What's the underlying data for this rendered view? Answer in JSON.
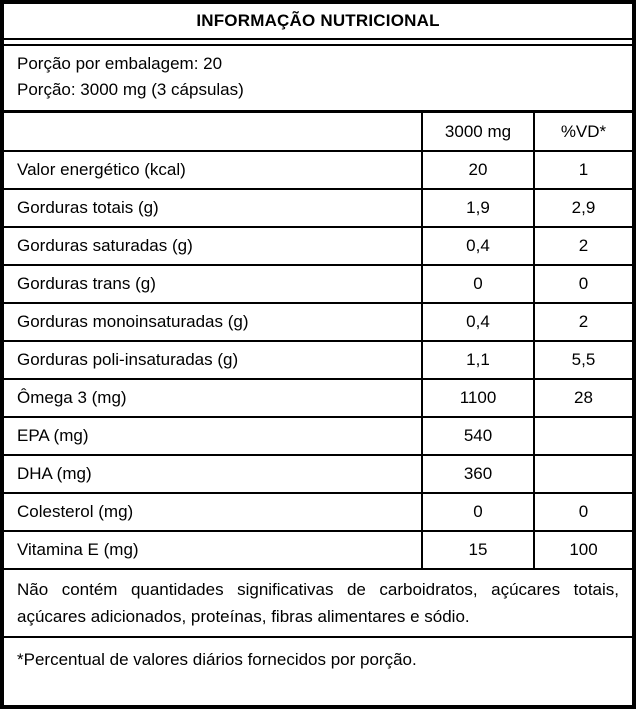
{
  "title": "INFORMAÇÃO NUTRICIONAL",
  "serving": {
    "servings_per_package": "Porção por embalagem: 20",
    "serving_size": "Porção: 3000 mg (3 cápsulas)"
  },
  "table": {
    "columns": {
      "amount": "3000 mg",
      "vd": "%VD*"
    },
    "rows": [
      {
        "label": "Valor energético (kcal)",
        "amount": "20",
        "vd": "1"
      },
      {
        "label": "Gorduras totais (g)",
        "amount": "1,9",
        "vd": "2,9"
      },
      {
        "label": "Gorduras saturadas (g)",
        "amount": "0,4",
        "vd": "2"
      },
      {
        "label": "Gorduras trans (g)",
        "amount": "0",
        "vd": "0"
      },
      {
        "label": "Gorduras monoinsaturadas (g)",
        "amount": "0,4",
        "vd": "2"
      },
      {
        "label": "Gorduras poli-insaturadas (g)",
        "amount": "1,1",
        "vd": "5,5"
      },
      {
        "label": "Ômega 3 (mg)",
        "amount": "1100",
        "vd": "28"
      },
      {
        "label": "EPA (mg)",
        "amount": "540",
        "vd": ""
      },
      {
        "label": "DHA (mg)",
        "amount": "360",
        "vd": ""
      },
      {
        "label": "Colesterol (mg)",
        "amount": "0",
        "vd": "0"
      },
      {
        "label": "Vitamina E (mg)",
        "amount": "15",
        "vd": "100"
      }
    ]
  },
  "notes": {
    "no_significant_amounts": "Não contém quantidades significativas de carboidratos, açúcares totais, açúcares adicionados, proteínas, fibras alimentares e sódio.",
    "daily_values": "*Percentual de valores diários fornecidos por porção."
  },
  "colors": {
    "border": "#000000",
    "background": "#ffffff",
    "text": "#000000"
  }
}
